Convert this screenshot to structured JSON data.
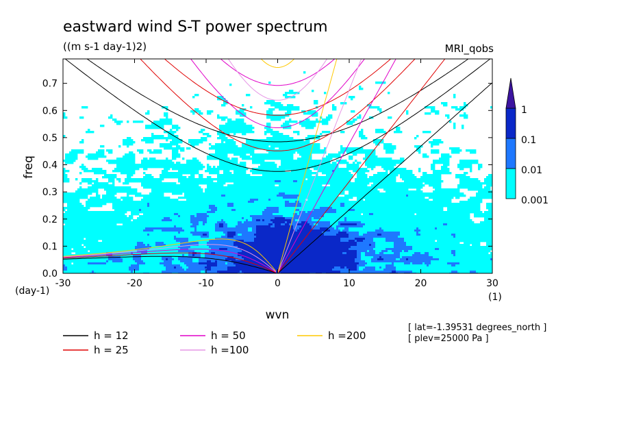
{
  "chart_data": {
    "type": "heatmap",
    "title": "eastward wind S-T power spectrum",
    "subtitle": "((m s-1 day-1)2)",
    "model_label": "MRI_qobs",
    "xlabel": "wvn",
    "ylabel": "freq",
    "x_unit": "(1)",
    "y_unit": "(day-1)",
    "xlim": [
      -30,
      30
    ],
    "ylim": [
      0,
      0.79
    ],
    "x_ticks": [
      "-30",
      "-20",
      "-10",
      "0",
      "10",
      "20",
      "30"
    ],
    "y_ticks": [
      "0.0",
      "0.1",
      "0.2",
      "0.3",
      "0.4",
      "0.5",
      "0.6",
      "0.7"
    ],
    "colorbar": {
      "levels": [
        "0.001",
        "0.01",
        "0.1",
        "1"
      ],
      "colors": [
        "#00ffff",
        "#1e78ff",
        "#0a28c8",
        "#3c14a0"
      ]
    },
    "background_color": "#ffffff",
    "dispersion_curves": [
      {
        "label": "h = 12",
        "color": "#000000"
      },
      {
        "label": "h = 25",
        "color": "#e00000"
      },
      {
        "label": "h = 50",
        "color": "#e000c8"
      },
      {
        "label": "h =100",
        "color": "#e696e6"
      },
      {
        "label": "h =200",
        "color": "#ffc800"
      }
    ],
    "info": [
      "[ lat=-1.39531 degrees_north ]",
      "[ plev=25000 Pa ]"
    ]
  }
}
